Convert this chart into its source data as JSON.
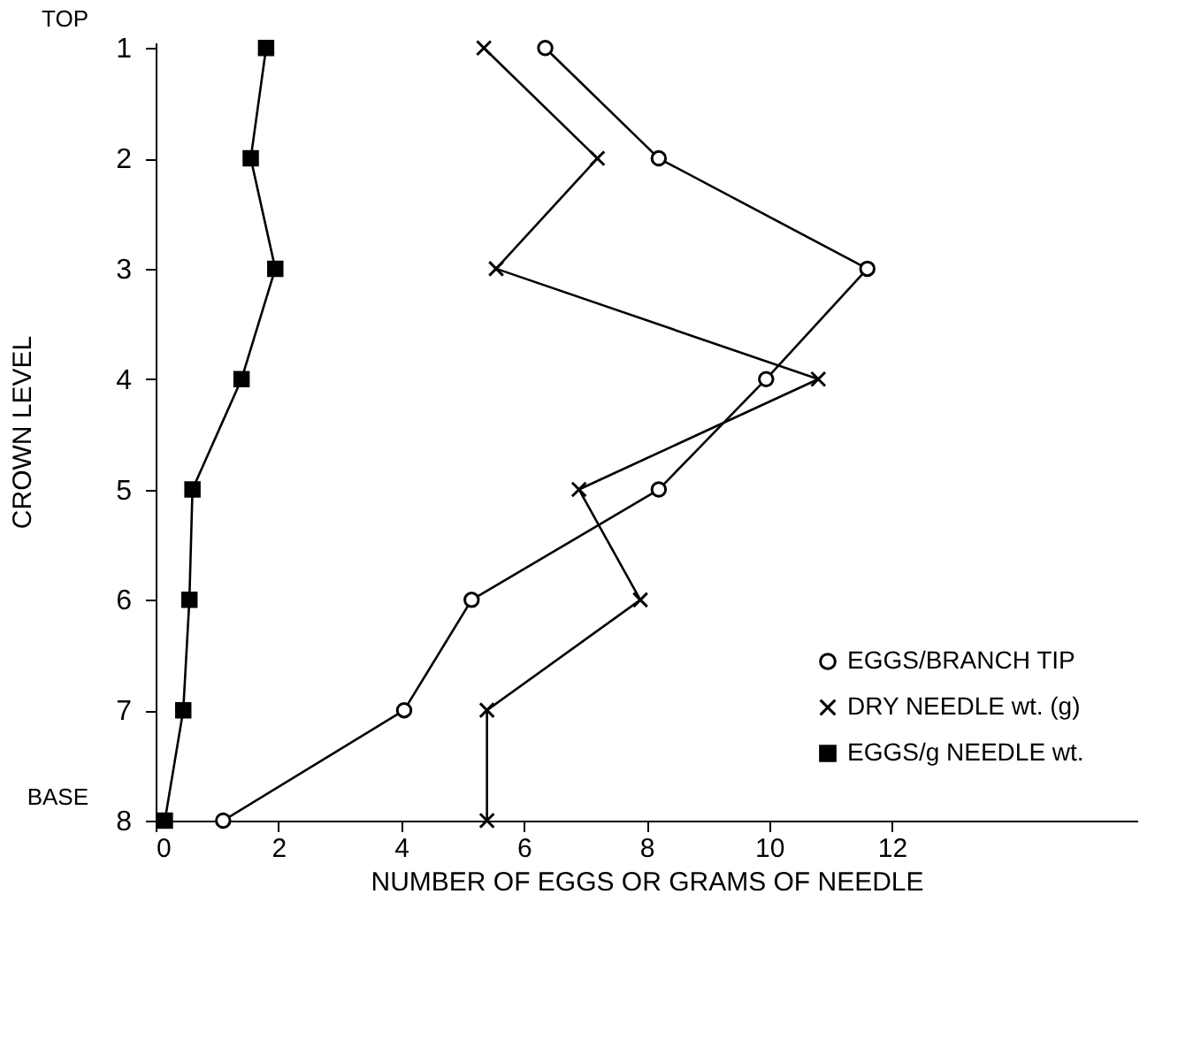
{
  "chart_data": {
    "type": "line",
    "xlabel": "NUMBER OF EGGS OR GRAMS OF NEEDLE",
    "ylabel": "CROWN LEVEL",
    "x": [
      1,
      2,
      3,
      4,
      5,
      6,
      7,
      8
    ],
    "series": [
      {
        "name": "EGGS/BRANCH TIP",
        "color": "#000000",
        "marker": "circle",
        "values": [
          6.35,
          8.2,
          11.6,
          9.95,
          8.2,
          5.15,
          4.05,
          1.1
        ]
      },
      {
        "name": "DRY NEEDLE wt. (g)",
        "color": "#000000",
        "marker": "cross",
        "values": [
          5.35,
          7.2,
          5.55,
          10.8,
          6.9,
          7.9,
          5.4,
          5.4
        ]
      },
      {
        "name": "EGGS/g NEEDLE wt.",
        "color": "#000000",
        "marker": "square",
        "values": [
          1.8,
          1.55,
          1.95,
          1.4,
          0.6,
          0.55,
          0.45,
          0.15
        ]
      }
    ],
    "orientation": "horizontal",
    "xlim": [
      0,
      16
    ],
    "xticks": [
      0,
      2,
      4,
      6,
      8,
      10,
      12
    ],
    "ylim": [
      8,
      0.95
    ],
    "yticks": [
      1,
      2,
      3,
      4,
      5,
      6,
      7,
      8
    ],
    "annotations": [
      "TOP",
      "BASE"
    ],
    "grid": false,
    "legend": "bottom right",
    "line_style": "solid"
  }
}
